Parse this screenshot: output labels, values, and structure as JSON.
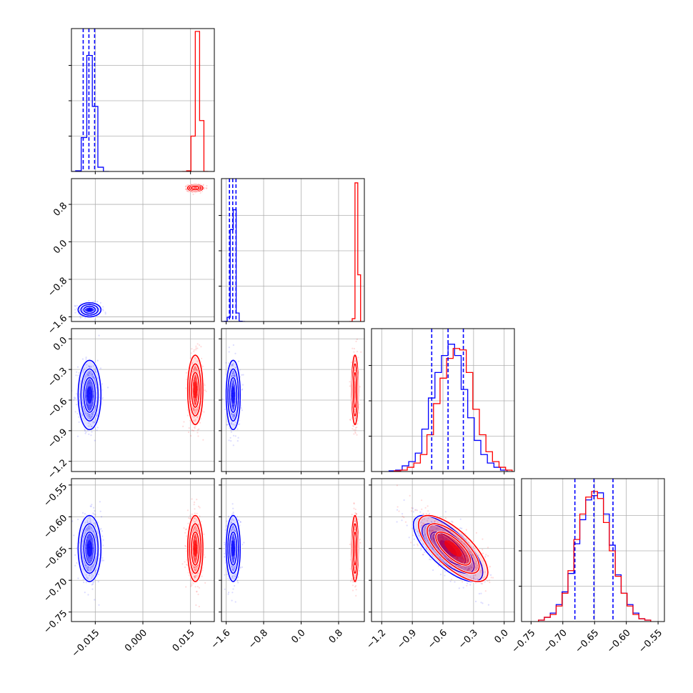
{
  "chart_data": {
    "type": "corner",
    "grid": true,
    "legend": "none",
    "colors": {
      "blue": "#0000ff",
      "red": "#ff0000"
    },
    "parameters": [
      {
        "range": [
          -0.0225,
          0.0225
        ],
        "ticks": [
          -0.015,
          0.0,
          0.015
        ],
        "tick_labels": [
          "−0.015",
          "0.000",
          "0.015"
        ]
      },
      {
        "range": [
          -1.7,
          1.35
        ],
        "ticks": [
          -1.6,
          -0.8,
          0.0,
          0.8
        ],
        "tick_labels": [
          "−1.6",
          "−0.8",
          "0.0",
          "0.8"
        ]
      },
      {
        "range": [
          -1.3,
          0.1
        ],
        "ticks": [
          -1.2,
          -0.9,
          -0.6,
          -0.3,
          0.0
        ],
        "tick_labels": [
          "−1.2",
          "−0.9",
          "−0.6",
          "−0.3",
          "0.0"
        ]
      },
      {
        "range": [
          -0.765,
          -0.54
        ],
        "ticks": [
          -0.75,
          -0.7,
          -0.65,
          -0.6,
          -0.55
        ],
        "tick_labels": [
          "−0.75",
          "−0.70",
          "−0.65",
          "−0.60",
          "−0.55"
        ]
      }
    ],
    "series": [
      {
        "color": "blue",
        "means": [
          -0.0168,
          -1.45,
          -0.55,
          -0.65
        ],
        "sigmas": [
          0.0018,
          0.075,
          0.17,
          0.026
        ],
        "quantile_lines": [
          [
            -0.0188,
            -0.017,
            -0.0152
          ],
          [
            -1.53,
            -1.46,
            -1.39
          ],
          [
            -0.71,
            -0.55,
            -0.4
          ],
          [
            -0.681,
            -0.651,
            -0.621
          ]
        ],
        "hist_heights": [
          [
            0.0,
            0.005,
            0.24,
            0.82,
            0.46,
            0.03,
            0.0
          ],
          [
            0.0,
            0.001,
            0.03,
            0.65,
            0.79,
            0.06,
            0.002,
            0.0
          ],
          [
            0.005,
            0.01,
            0.04,
            0.07,
            0.13,
            0.3,
            0.52,
            0.7,
            0.82,
            0.9,
            0.82,
            0.58,
            0.38,
            0.22,
            0.12,
            0.06,
            0.03,
            0.01
          ],
          [
            0.01,
            0.03,
            0.06,
            0.12,
            0.21,
            0.34,
            0.55,
            0.72,
            0.86,
            0.89,
            0.91,
            0.76,
            0.54,
            0.33,
            0.2,
            0.12,
            0.06,
            0.02,
            0.01
          ]
        ]
      },
      {
        "color": "red",
        "means": [
          0.0165,
          1.15,
          -0.5,
          -0.65
        ],
        "sigmas": [
          0.0012,
          0.035,
          0.17,
          0.026
        ],
        "hist_heights": [
          [
            0.0,
            0.005,
            0.25,
            0.99,
            0.36,
            0.0
          ],
          [
            0.0,
            0.02,
            0.98,
            0.33
          ],
          [
            0.005,
            0.01,
            0.03,
            0.06,
            0.12,
            0.26,
            0.48,
            0.66,
            0.8,
            0.87,
            0.86,
            0.7,
            0.44,
            0.26,
            0.14,
            0.07,
            0.03,
            0.01
          ],
          [
            0.01,
            0.03,
            0.05,
            0.11,
            0.2,
            0.36,
            0.58,
            0.76,
            0.88,
            0.92,
            0.87,
            0.7,
            0.5,
            0.32,
            0.2,
            0.11,
            0.05,
            0.02,
            0.01
          ]
        ]
      }
    ],
    "correlations": {
      "2-3": -0.72
    }
  }
}
